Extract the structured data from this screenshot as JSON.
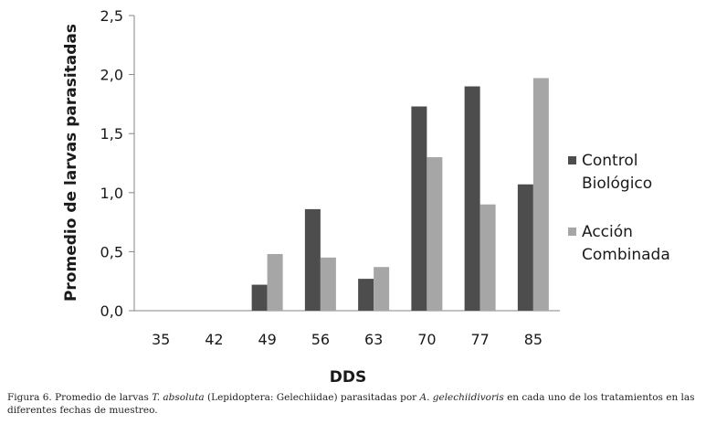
{
  "chart_data": {
    "type": "bar",
    "title": "",
    "xlabel": "DDS",
    "ylabel": "Promedio de larvas parasitadas",
    "categories": [
      "35",
      "42",
      "49",
      "56",
      "63",
      "70",
      "77",
      "85"
    ],
    "series": [
      {
        "name": "Control Biológico",
        "legend_lines": [
          "Control",
          "Biológico"
        ],
        "color": "#4d4d4d",
        "values": [
          0,
          0,
          0.22,
          0.86,
          0.27,
          1.73,
          1.9,
          1.07
        ]
      },
      {
        "name": "Acción Combinada",
        "legend_lines": [
          "Acción",
          "Combinada"
        ],
        "color": "#a6a6a6",
        "values": [
          0,
          0,
          0.48,
          0.45,
          0.37,
          1.3,
          0.9,
          1.97
        ]
      }
    ],
    "ylim": [
      0,
      2.5
    ],
    "yticks": [
      "0,0",
      "0,5",
      "1,0",
      "1,5",
      "2,0",
      "2,5"
    ],
    "grid": false,
    "legend_position": "right"
  },
  "caption": {
    "prefix": "Figura 6. Promedio de larvas ",
    "species": "T. absoluta",
    "middle": " (Lepidoptera: Gelechiidae) parasitadas por ",
    "parasitoid": "A. gelechiidivoris",
    "suffix": " en cada uno de los tratamientos en las diferentes fechas de muestreo."
  }
}
